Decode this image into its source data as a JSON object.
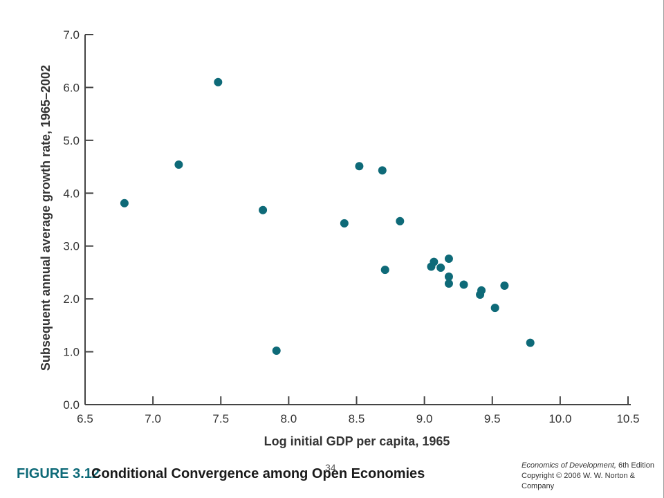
{
  "chart_data": {
    "type": "scatter",
    "title": "",
    "xlabel": "Log initial GDP per capita, 1965",
    "ylabel": "Subsequent annual average growth rate, 1965–2002",
    "xlim": [
      6.5,
      10.5
    ],
    "ylim": [
      0.0,
      7.0
    ],
    "x_ticks": [
      "6.5",
      "7.0",
      "7.5",
      "8.0",
      "8.5",
      "9.0",
      "9.5",
      "10.0",
      "10.5"
    ],
    "y_ticks": [
      "0.0",
      "1.0",
      "2.0",
      "3.0",
      "4.0",
      "5.0",
      "6.0",
      "7.0"
    ],
    "grid": false,
    "marker_color": "#0e6a78",
    "points": [
      {
        "x": 6.79,
        "y": 3.81
      },
      {
        "x": 7.19,
        "y": 4.54
      },
      {
        "x": 7.48,
        "y": 6.1
      },
      {
        "x": 7.81,
        "y": 3.68
      },
      {
        "x": 7.91,
        "y": 1.02
      },
      {
        "x": 8.41,
        "y": 3.43
      },
      {
        "x": 8.52,
        "y": 4.51
      },
      {
        "x": 8.69,
        "y": 4.43
      },
      {
        "x": 8.71,
        "y": 2.55
      },
      {
        "x": 8.82,
        "y": 3.47
      },
      {
        "x": 9.05,
        "y": 2.61
      },
      {
        "x": 9.07,
        "y": 2.7
      },
      {
        "x": 9.12,
        "y": 2.59
      },
      {
        "x": 9.18,
        "y": 2.76
      },
      {
        "x": 9.18,
        "y": 2.42
      },
      {
        "x": 9.18,
        "y": 2.29
      },
      {
        "x": 9.29,
        "y": 2.27
      },
      {
        "x": 9.41,
        "y": 2.08
      },
      {
        "x": 9.42,
        "y": 2.16
      },
      {
        "x": 9.52,
        "y": 1.83
      },
      {
        "x": 9.59,
        "y": 2.25
      },
      {
        "x": 9.78,
        "y": 1.17
      }
    ]
  },
  "figure": {
    "number": "FIGURE 3.12",
    "title": "Conditional Convergence among Open Economies"
  },
  "page_number": "34",
  "credit": {
    "book_title": "Economics of Development,",
    "edition": " 6th Edition",
    "copyright": "Copyright © 2006 W. W. Norton & Company"
  }
}
